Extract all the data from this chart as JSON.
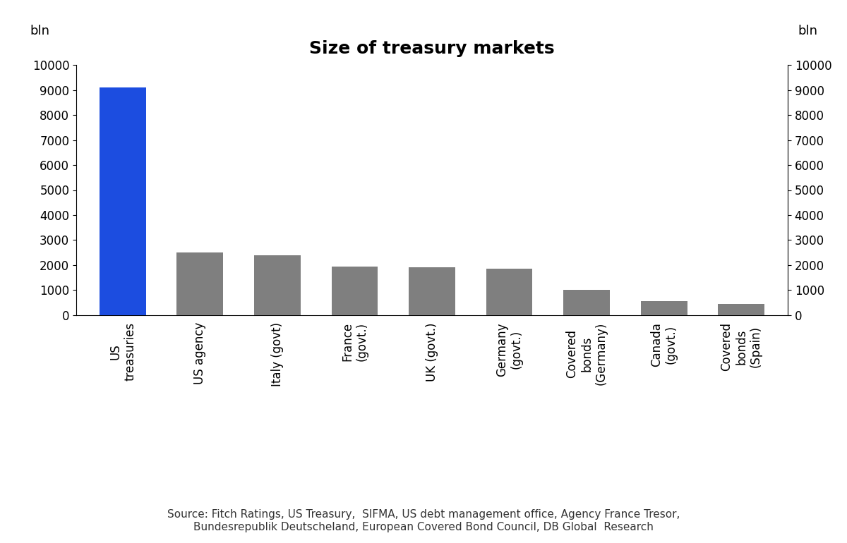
{
  "title": "Size of treasury markets",
  "ylabel_left": "bln",
  "ylabel_right": "bln",
  "categories": [
    "US\ntreasuries",
    "US agency",
    "Italy (govt)",
    "France\n(govt.)",
    "UK (govt.)",
    "Germany\n(govt.)",
    "Covered\nbonds\n(Germany)",
    "Canada\n(govt.)",
    "Covered\nbonds\n(Spain)"
  ],
  "values": [
    9100,
    2500,
    2400,
    1950,
    1900,
    1850,
    1000,
    550,
    450
  ],
  "bar_colors": [
    "#1c4de0",
    "#7f7f7f",
    "#7f7f7f",
    "#7f7f7f",
    "#7f7f7f",
    "#7f7f7f",
    "#7f7f7f",
    "#7f7f7f",
    "#7f7f7f"
  ],
  "ylim": [
    0,
    10000
  ],
  "yticks": [
    0,
    1000,
    2000,
    3000,
    4000,
    5000,
    6000,
    7000,
    8000,
    9000,
    10000
  ],
  "source_text": "Source: Fitch Ratings, US Treasury,  SIFMA, US debt management office, Agency France Tresor,\nBundesrepublik Deutscheland, European Covered Bond Council, DB Global  Research",
  "background_color": "#ffffff",
  "title_fontsize": 18,
  "tick_fontsize": 12,
  "source_fontsize": 11,
  "bar_width": 0.6
}
